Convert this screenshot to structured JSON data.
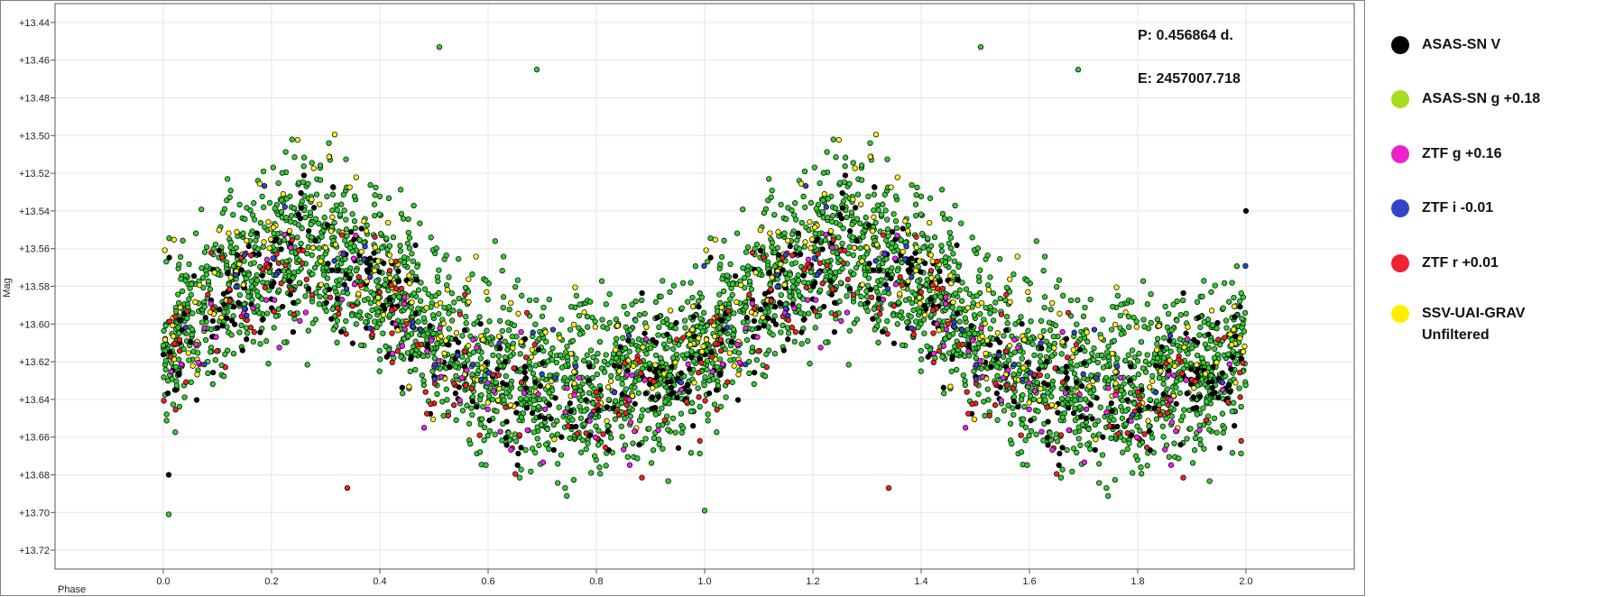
{
  "chart_data": {
    "type": "scatter",
    "title": "",
    "xlabel": "Phase",
    "ylabel": "Mag",
    "xlim": [
      -0.2,
      2.2
    ],
    "ylim": [
      13.73,
      13.43
    ],
    "y_inverted": true,
    "x_ticks": [
      0.0,
      0.2,
      0.4,
      0.6,
      0.8,
      1.0,
      1.2,
      1.4,
      1.6,
      1.8,
      2.0
    ],
    "x_tick_labels": [
      "0.0",
      "0.2",
      "0.4",
      "0.6",
      "0.8",
      "1.0",
      "1.2",
      "1.4",
      "1.6",
      "1.8",
      "2.0"
    ],
    "y_ticks": [
      13.44,
      13.46,
      13.48,
      13.5,
      13.52,
      13.54,
      13.56,
      13.58,
      13.6,
      13.62,
      13.64,
      13.66,
      13.68,
      13.7,
      13.72
    ],
    "y_tick_labels": [
      "+13.44",
      "+13.46",
      "+13.48",
      "+13.50",
      "+13.52",
      "+13.54",
      "+13.56",
      "+13.58",
      "+13.60",
      "+13.62",
      "+13.64",
      "+13.66",
      "+13.68",
      "+13.70",
      "+13.72"
    ],
    "grid": true,
    "legend_position": "right",
    "annotations": [
      "P: 0.456864 d.",
      "E: 2457007.718"
    ],
    "light_curve_model": {
      "mean_mag": 13.603,
      "amplitude": 0.038,
      "second_harmonic": 0.006,
      "phase_of_max": 0.27,
      "scatter": 0.022
    },
    "series": [
      {
        "name": "ASAS-SN V",
        "color": "#000000",
        "mag_offset": 0.008,
        "count": 260
      },
      {
        "name": "ASAS-SN g +0.18",
        "color": "#33cc33",
        "mag_offset": 0.0,
        "count": 1750
      },
      {
        "name": "ZTF g +0.16",
        "color": "#ee22ee",
        "mag_offset": 0.012,
        "count": 70
      },
      {
        "name": "ZTF i -0.01",
        "color": "#3344cc",
        "mag_offset": -0.002,
        "count": 40
      },
      {
        "name": "ZTF r +0.01",
        "color": "#ee2222",
        "mag_offset": 0.012,
        "count": 130
      },
      {
        "name": "SSV-UAI-GRAV Unfiltered",
        "color": "#ffee22",
        "mag_offset": -0.012,
        "count": 170
      }
    ],
    "sample_points": [
      {
        "series": "ASAS-SN g +0.18",
        "x": 0.51,
        "y": 13.453
      },
      {
        "series": "ASAS-SN g +0.18",
        "x": 1.51,
        "y": 13.453
      },
      {
        "series": "ASAS-SN g +0.18",
        "x": 0.69,
        "y": 13.465
      },
      {
        "series": "ASAS-SN g +0.18",
        "x": 1.69,
        "y": 13.465
      },
      {
        "series": "ASAS-SN g +0.18",
        "x": 0.01,
        "y": 13.701
      },
      {
        "series": "ASAS-SN g +0.18",
        "x": 1.0,
        "y": 13.699
      },
      {
        "series": "ASAS-SN V",
        "x": 0.01,
        "y": 13.68
      },
      {
        "series": "ASAS-SN V",
        "x": 2.0,
        "y": 13.54
      },
      {
        "series": "ZTF r +0.01",
        "x": 0.34,
        "y": 13.687
      },
      {
        "series": "ZTF r +0.01",
        "x": 1.34,
        "y": 13.687
      }
    ]
  },
  "legend": {
    "items": [
      {
        "label": "ASAS-SN V",
        "color": "#000000"
      },
      {
        "label": "ASAS-SN g +0.18",
        "color": "#a8dc1e"
      },
      {
        "label": "ZTF g +0.16",
        "color": "#ee22cc"
      },
      {
        "label": "ZTF i -0.01",
        "color": "#3344cc"
      },
      {
        "label": "ZTF r +0.01",
        "color": "#ee2233"
      },
      {
        "label": "SSV-UAI-GRAV\nUnfiltered",
        "color": "#ffee00"
      }
    ]
  }
}
